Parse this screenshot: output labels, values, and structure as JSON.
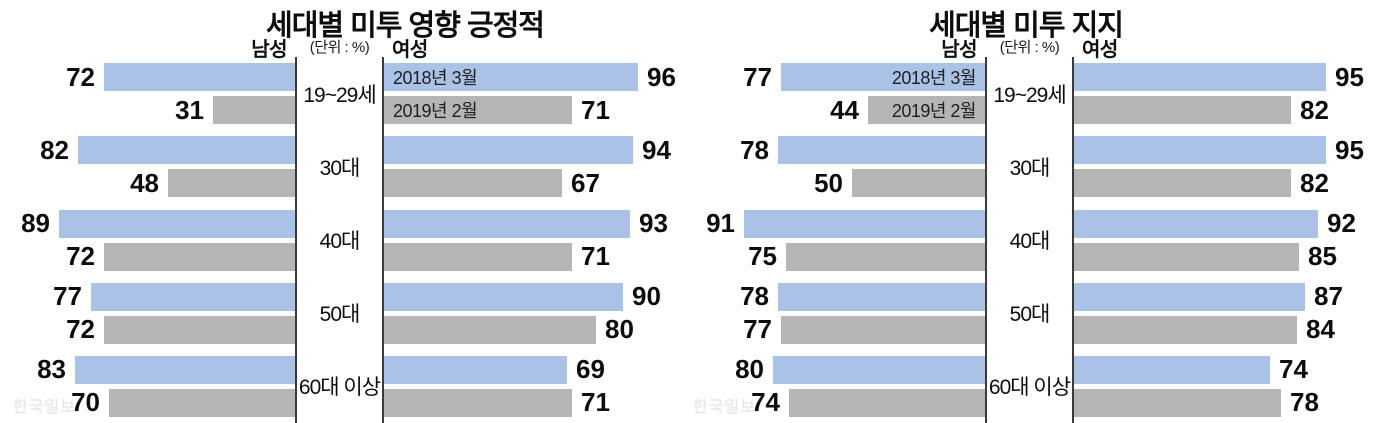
{
  "watermark": "한국일보",
  "colors": {
    "bar_2018": "#a9c2e6",
    "bar_2019": "#b5b5b5",
    "divider": "#3a3a3a",
    "text": "#0d0d0d"
  },
  "chart_data": [
    {
      "type": "bar",
      "subtype": "horizontal-butterfly",
      "title": "세대별 미투 영향 긍정적",
      "unit_label": "(단위 : %)",
      "left_header": "남성",
      "right_header": "여성",
      "categories": [
        "19~29세",
        "30대",
        "40대",
        "50대",
        "60대 이상"
      ],
      "legend": [
        "2018년 3월",
        "2019년 2월"
      ],
      "legend_position": "inside-top-female-bars",
      "xlim": [
        0,
        100
      ],
      "series": [
        {
          "name": "남성 2018년 3월",
          "side": "male",
          "color": "#a9c2e6",
          "values": [
            72,
            82,
            89,
            77,
            83
          ]
        },
        {
          "name": "남성 2019년 2월",
          "side": "male",
          "color": "#b5b5b5",
          "values": [
            31,
            48,
            72,
            72,
            70
          ]
        },
        {
          "name": "여성 2018년 3월",
          "side": "female",
          "color": "#a9c2e6",
          "values": [
            96,
            94,
            93,
            90,
            69
          ]
        },
        {
          "name": "여성 2019년 2월",
          "side": "female",
          "color": "#b5b5b5",
          "values": [
            71,
            67,
            71,
            80,
            71
          ]
        }
      ]
    },
    {
      "type": "bar",
      "subtype": "horizontal-butterfly",
      "title": "세대별 미투 지지",
      "unit_label": "(단위 : %)",
      "left_header": "남성",
      "right_header": "여성",
      "categories": [
        "19~29세",
        "30대",
        "40대",
        "50대",
        "60대 이상"
      ],
      "legend": [
        "2018년 3월",
        "2019년 2월"
      ],
      "legend_position": "inside-top-male-bars",
      "xlim": [
        0,
        100
      ],
      "series": [
        {
          "name": "남성 2018년 3월",
          "side": "male",
          "color": "#a9c2e6",
          "values": [
            77,
            78,
            91,
            78,
            80
          ]
        },
        {
          "name": "남성 2019년 2월",
          "side": "male",
          "color": "#b5b5b5",
          "values": [
            44,
            50,
            75,
            77,
            74
          ]
        },
        {
          "name": "여성 2018년 3월",
          "side": "female",
          "color": "#a9c2e6",
          "values": [
            95,
            95,
            92,
            87,
            74
          ]
        },
        {
          "name": "여성 2019년 2월",
          "side": "female",
          "color": "#b5b5b5",
          "values": [
            82,
            82,
            85,
            84,
            78
          ]
        }
      ]
    }
  ]
}
